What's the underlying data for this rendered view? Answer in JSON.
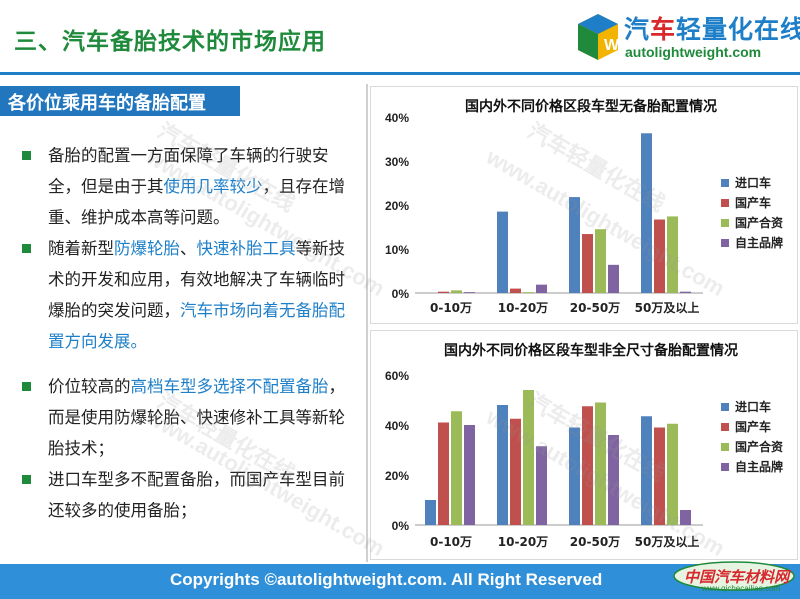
{
  "header": {
    "title": "三、汽车备胎技术的市场应用",
    "logo_cn_prefix": "汽",
    "logo_cn_mid": "车",
    "logo_cn_suffix": "轻量化在线",
    "logo_en": "autolightweight.com"
  },
  "section": {
    "subtitle": "各价位乘用车的备胎配置"
  },
  "bullets": [
    {
      "segments": [
        {
          "text": "备胎的配置一方面保障了车辆的行驶安全，但是由于其",
          "hl": false
        },
        {
          "text": "使用几率较少",
          "hl": true
        },
        {
          "text": "，且存在增重、维护成本高等问题。",
          "hl": false
        }
      ]
    },
    {
      "segments": [
        {
          "text": "随着新型",
          "hl": false
        },
        {
          "text": "防爆轮胎",
          "hl": true
        },
        {
          "text": "、",
          "hl": false
        },
        {
          "text": "快速补胎工具",
          "hl": true
        },
        {
          "text": "等新技术的开发和应用，有效地解决了车辆临时爆胎的突发问题，",
          "hl": false
        },
        {
          "text": "汽车市场向着无备胎配置方向发展。",
          "hl": true
        }
      ]
    },
    {
      "segments": [
        {
          "text": "价位较高的",
          "hl": false
        },
        {
          "text": "高档车型多选择不配置备胎",
          "hl": true
        },
        {
          "text": "，而是使用防爆轮胎、快速修补工具等新轮胎技术；",
          "hl": false
        }
      ]
    },
    {
      "segments": [
        {
          "text": "进口车型多不配置备胎，而国产车型目前还较多的使用备胎；",
          "hl": false
        }
      ]
    }
  ],
  "watermark": {
    "cn": "汽车轻量化在线",
    "en": "www.autolightweight.com"
  },
  "chart_data": [
    {
      "type": "bar",
      "title": "国内外不同价格区段车型无备胎配置情况",
      "categories": [
        "0-10万",
        "10-20万",
        "20-50万",
        "50万及以上"
      ],
      "ylim": [
        0,
        40
      ],
      "yticks": [
        0,
        10,
        20,
        30,
        40
      ],
      "ytick_labels": [
        "0%",
        "10%",
        "20%",
        "30%",
        "40%"
      ],
      "grid": false,
      "legend": "right",
      "series": [
        {
          "name": "进口车",
          "color": "#4f81bd",
          "values": [
            0,
            18.5,
            21.8,
            36.3
          ]
        },
        {
          "name": "国产车",
          "color": "#c0504d",
          "values": [
            0.3,
            1.0,
            13.4,
            16.7
          ]
        },
        {
          "name": "国产合资",
          "color": "#9bbb59",
          "values": [
            0.6,
            0.2,
            14.5,
            17.4
          ]
        },
        {
          "name": "自主品牌",
          "color": "#8064a2",
          "values": [
            0.2,
            1.9,
            6.4,
            0.3
          ]
        }
      ]
    },
    {
      "type": "bar",
      "title": "国内外不同价格区段车型非全尺寸备胎配置情况",
      "categories": [
        "0-10万",
        "10-20万",
        "20-50万",
        "50万及以上"
      ],
      "ylim": [
        0,
        60
      ],
      "yticks": [
        0,
        20,
        40,
        60
      ],
      "ytick_labels": [
        "0%",
        "20%",
        "40%",
        "60%"
      ],
      "grid": false,
      "legend": "right",
      "series": [
        {
          "name": "进口车",
          "color": "#4f81bd",
          "values": [
            10,
            48,
            39,
            43.5
          ]
        },
        {
          "name": "国产车",
          "color": "#c0504d",
          "values": [
            41,
            42.5,
            47.5,
            39
          ]
        },
        {
          "name": "国产合资",
          "color": "#9bbb59",
          "values": [
            45.5,
            54,
            49,
            40.5
          ]
        },
        {
          "name": "自主品牌",
          "color": "#8064a2",
          "values": [
            40,
            31.5,
            36,
            6
          ]
        }
      ]
    }
  ],
  "footer": {
    "copyright": "Copyrights ©autolightweight.com. All Right Reserved",
    "badge_text": "中国汽车材料网",
    "badge_sub": "www.qichecailiao.com"
  },
  "colors": {
    "title_green": "#1f8a3b",
    "accent_blue": "#2276be",
    "footer_blue": "#2f8fd8"
  }
}
